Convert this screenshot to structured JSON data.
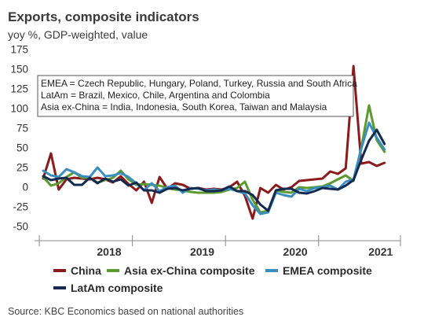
{
  "chart_data": {
    "type": "line",
    "title": "Exports, composite indicators",
    "subtitle": "yoy %, GDP-weighted, value",
    "ylim": [
      -50,
      175
    ],
    "yticks": [
      -50,
      -25,
      0,
      25,
      50,
      75,
      100,
      125,
      150,
      175
    ],
    "ytick_labels": [
      "-50",
      "-25",
      "0",
      "25",
      "50",
      "75",
      "100",
      "125",
      "150",
      "175"
    ],
    "grid": false,
    "x_start": "2017-10",
    "x_year_labels": [
      "2018",
      "2019",
      "2020",
      "2021"
    ],
    "annotation": [
      "EMEA = Czech Republic, Hungary, Poland, Turkey, Russia and South Africa",
      "LatAm = Brazil, Mexico, Chile, Argentina and Colombia",
      "Asia ex-China = India, Indonesia, South Korea, Taiwan and Malaysia"
    ],
    "legend_position": "bottom",
    "series": [
      {
        "name": "China",
        "color": "#8b1a1a",
        "values": [
          11,
          43,
          -3,
          10,
          12,
          11,
          10,
          12,
          10,
          6,
          14,
          4,
          -4,
          7,
          -20,
          13,
          -2,
          5,
          3,
          -2,
          -1,
          -3,
          -2,
          -3,
          0,
          7,
          -11,
          -40,
          -1,
          -7,
          3,
          -3,
          0,
          8,
          9,
          10,
          11,
          20,
          17,
          24,
          154,
          30,
          32,
          27,
          31
        ]
      },
      {
        "name": "Asia ex-China composite",
        "color": "#5a9a2e",
        "values": [
          13,
          2,
          5,
          13,
          19,
          12,
          12,
          6,
          9,
          12,
          21,
          10,
          3,
          4,
          3,
          2,
          -1,
          -3,
          -4,
          -6,
          -7,
          -7,
          -7,
          -6,
          -3,
          -1,
          7,
          -16,
          -32,
          -30,
          -4,
          -6,
          -7,
          0,
          -1,
          0,
          1,
          5,
          10,
          15,
          8,
          50,
          104,
          60,
          45
        ]
      },
      {
        "name": "EMEA composite",
        "color": "#3a8fc0",
        "values": [
          21,
          15,
          13,
          23,
          19,
          14,
          13,
          25,
          14,
          15,
          18,
          13,
          5,
          -4,
          5,
          -5,
          0,
          2,
          -7,
          -1,
          -2,
          -4,
          -3,
          -4,
          -2,
          -5,
          -8,
          -23,
          -34,
          -32,
          -7,
          -10,
          -12,
          -2,
          -5,
          -1,
          0,
          2,
          -3,
          7,
          10,
          49,
          82,
          63,
          48
        ]
      },
      {
        "name": "LatAm composite",
        "color": "#142a50",
        "values": [
          14,
          9,
          11,
          12,
          3,
          3,
          12,
          5,
          11,
          7,
          10,
          2,
          6,
          -4,
          -4,
          -7,
          -2,
          -1,
          -4,
          -2,
          -1,
          -5,
          -5,
          -4,
          1,
          -5,
          -5,
          -10,
          -22,
          -30,
          -4,
          -2,
          -2,
          -7,
          -8,
          -5,
          -1,
          -2,
          -3,
          2,
          9,
          35,
          59,
          73,
          55
        ]
      }
    ]
  },
  "source": "Source: KBC Economics based on national authorities"
}
